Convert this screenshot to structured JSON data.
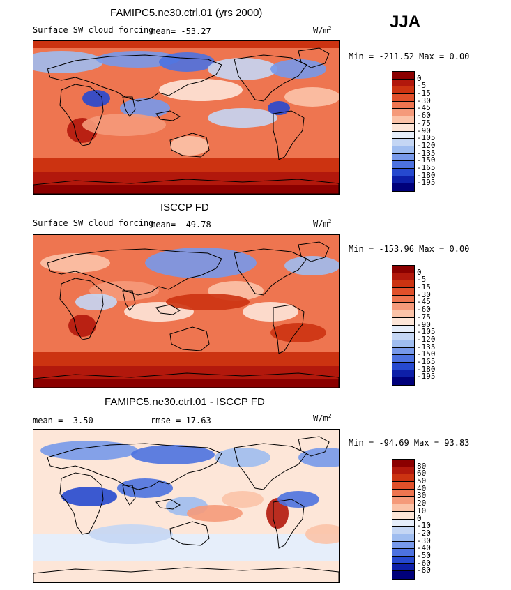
{
  "season": "JJA",
  "panels": [
    {
      "title": "FAMIPC5.ne30.ctrl.01 (yrs 2000)",
      "field": "Surface SW cloud forcing",
      "mean_text": "mean=  -53.27",
      "units": "W/m",
      "units_sup": "2",
      "minmax": "Min = -211.52  Max =    0.00",
      "levels": [
        "0",
        "-5",
        "-15",
        "-30",
        "-45",
        "-60",
        "-75",
        "-90",
        "-105",
        "-120",
        "-135",
        "-150",
        "-165",
        "-180",
        "-195"
      ],
      "colors": [
        "#8b0000",
        "#b2180c",
        "#cc3311",
        "#e0502a",
        "#ee7550",
        "#f59a7a",
        "#fbc3a8",
        "#fde6d8",
        "#e6eefa",
        "#c4d6f4",
        "#9fbdf0",
        "#7799ea",
        "#4d72e0",
        "#2649cf",
        "#0d1fa8",
        "#00007a"
      ]
    },
    {
      "title": "ISCCP FD",
      "field": "Surface SW cloud forcing",
      "mean_text": "mean=  -49.78",
      "units": "W/m",
      "units_sup": "2",
      "minmax": "Min = -153.96  Max =    0.00",
      "levels": [
        "0",
        "-5",
        "-15",
        "-30",
        "-45",
        "-60",
        "-75",
        "-90",
        "-105",
        "-120",
        "-135",
        "-150",
        "-165",
        "-180",
        "-195"
      ],
      "colors": [
        "#8b0000",
        "#b2180c",
        "#cc3311",
        "#e0502a",
        "#ee7550",
        "#f59a7a",
        "#fbc3a8",
        "#fde6d8",
        "#e6eefa",
        "#c4d6f4",
        "#9fbdf0",
        "#7799ea",
        "#4d72e0",
        "#2649cf",
        "#0d1fa8",
        "#00007a"
      ]
    },
    {
      "title": "FAMIPC5.ne30.ctrl.01 - ISCCP FD",
      "mean_text": "mean =   -3.50",
      "rmse_text": "rmse =   17.63",
      "units": "W/m",
      "units_sup": "2",
      "minmax": "Min = -94.69  Max =   93.83",
      "levels": [
        "80",
        "60",
        "50",
        "40",
        "30",
        "20",
        "10",
        "0",
        "-10",
        "-20",
        "-30",
        "-40",
        "-50",
        "-60",
        "-80"
      ],
      "colors": [
        "#8b0000",
        "#b2180c",
        "#cc3311",
        "#e0502a",
        "#ee7550",
        "#f59a7a",
        "#fbc3a8",
        "#fde6d8",
        "#e6eefa",
        "#c4d6f4",
        "#9fbdf0",
        "#7799ea",
        "#4d72e0",
        "#2649cf",
        "#0d1fa8",
        "#00007a"
      ]
    }
  ]
}
